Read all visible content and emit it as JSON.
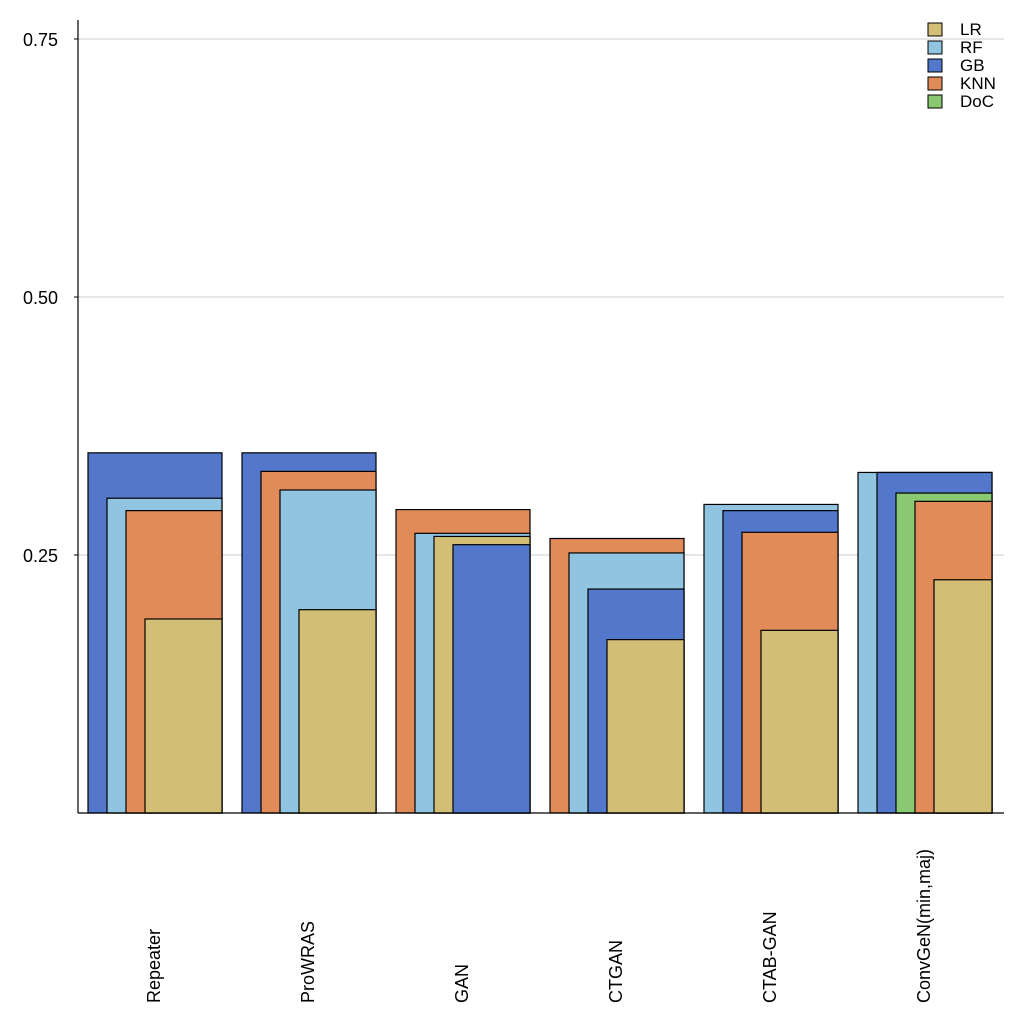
{
  "chart_data": {
    "type": "bar",
    "title": "",
    "xlabel": "",
    "ylabel": "",
    "ylim": [
      0,
      0.77
    ],
    "yticks": [
      "0.25",
      "0.50",
      "0.75"
    ],
    "grid": "horizontal",
    "legend_position": "top-right",
    "bar_style": "overlapping, sorted descending within each group",
    "categories": [
      "Repeater",
      "ProWRAS",
      "GAN",
      "CTGAN",
      "CTAB-GAN",
      "ConvGeN(min,maj)"
    ],
    "series": [
      {
        "name": "LR",
        "color": "#d2be74",
        "values": [
          0.188,
          0.197,
          0.268,
          0.168,
          0.177,
          0.226
        ]
      },
      {
        "name": "RF",
        "color": "#91c4e0",
        "values": [
          0.305,
          0.313,
          0.271,
          0.252,
          0.299,
          0.33
        ]
      },
      {
        "name": "GB",
        "color": "#5277cb",
        "values": [
          0.349,
          0.349,
          0.26,
          0.217,
          0.293,
          0.33
        ]
      },
      {
        "name": "KNN",
        "color": "#e08b58",
        "values": [
          0.293,
          0.331,
          0.294,
          0.266,
          0.272,
          0.302
        ]
      },
      {
        "name": "DoC",
        "color": "#88c971",
        "values": [
          null,
          null,
          null,
          null,
          null,
          0.31
        ]
      }
    ]
  }
}
